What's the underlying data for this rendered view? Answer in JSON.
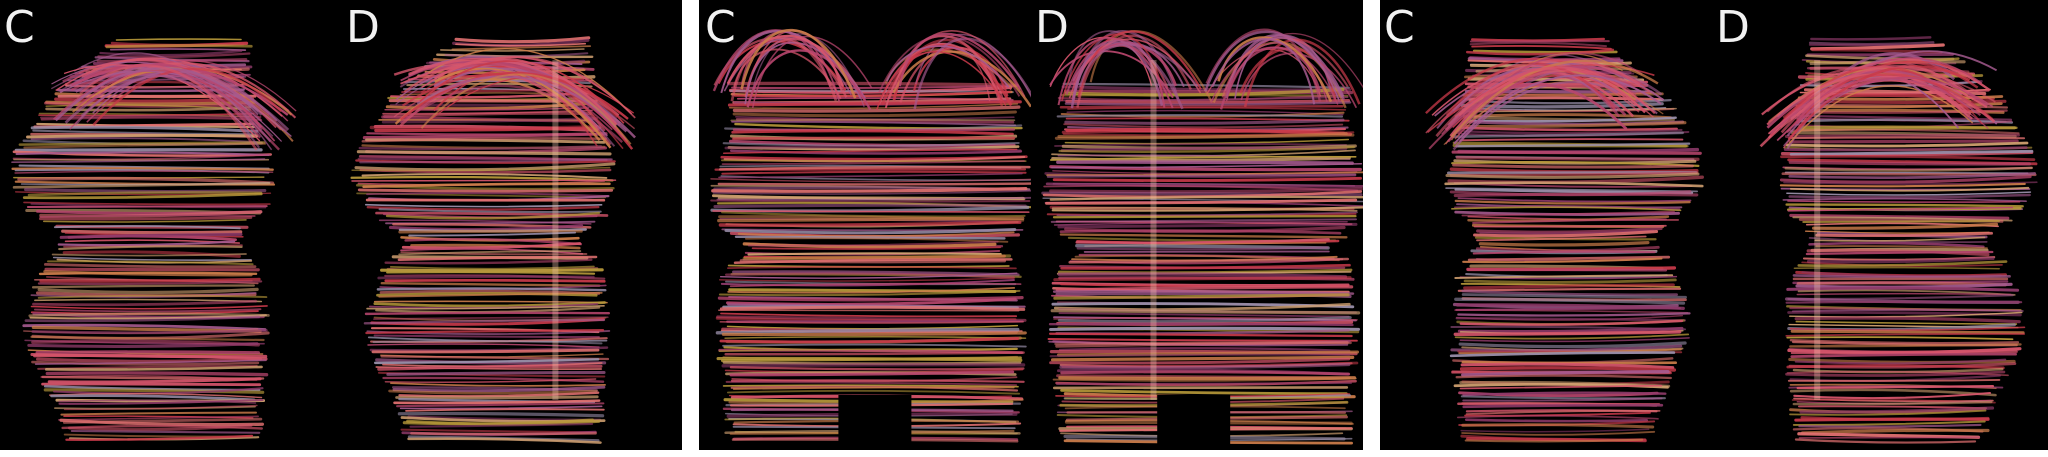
{
  "figure": {
    "panels": [
      {
        "view": "lateral-left",
        "labels": [
          "C",
          "D"
        ]
      },
      {
        "view": "frontal",
        "labels": [
          "C",
          "D"
        ]
      },
      {
        "view": "lateral-right",
        "labels": [
          "C",
          "D"
        ]
      }
    ],
    "colors": {
      "background": "#000000",
      "separator": "#ffffff",
      "fiber_palette": [
        "#c93a4a",
        "#d6556b",
        "#b8466e",
        "#a55a8f",
        "#cc7d4a",
        "#b89a3a",
        "#9a8faa",
        "#e07070",
        "#8f3a6a",
        "#d0a070"
      ]
    }
  }
}
